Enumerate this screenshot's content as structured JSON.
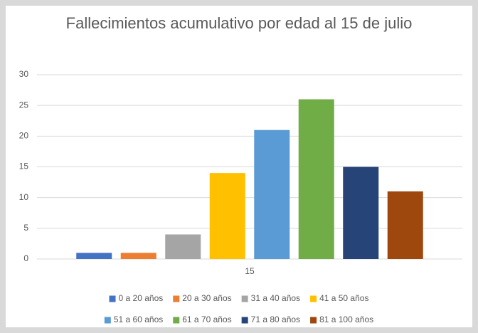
{
  "chart_data": {
    "type": "bar",
    "title": "Fallecimientos acumulativo por edad al 15 de julio",
    "categories": [
      "15"
    ],
    "series": [
      {
        "name": "0 a 20 años",
        "color": "#4472c4",
        "values": [
          1
        ]
      },
      {
        "name": "20 a 30 años",
        "color": "#ed7d31",
        "values": [
          1
        ]
      },
      {
        "name": "31 a 40 años",
        "color": "#a5a5a5",
        "values": [
          4
        ]
      },
      {
        "name": "41 a 50 años",
        "color": "#ffc000",
        "values": [
          14
        ]
      },
      {
        "name": "51 a 60 años",
        "color": "#5b9bd5",
        "values": [
          21
        ]
      },
      {
        "name": "61 a 70 años",
        "color": "#70ad47",
        "values": [
          26
        ]
      },
      {
        "name": "71 a 80 años",
        "color": "#264478",
        "values": [
          15
        ]
      },
      {
        "name": "81 a 100 años",
        "color": "#9e480e",
        "values": [
          11
        ]
      }
    ],
    "ylim": [
      0,
      30
    ],
    "yticks": [
      0,
      5,
      10,
      15,
      20,
      25,
      30
    ],
    "grid": true,
    "legend": "bottom"
  }
}
